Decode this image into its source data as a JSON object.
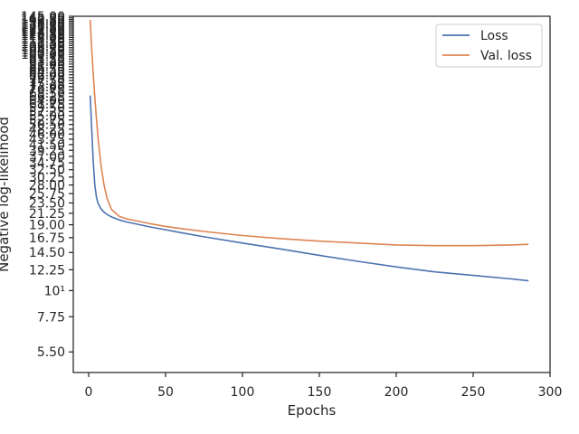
{
  "chart_data": {
    "type": "line",
    "title": "",
    "xlabel": "Epochs",
    "ylabel": "Negative log-likelihood",
    "yscale": "log",
    "xlim": [
      -10,
      300
    ],
    "ylim": [
      4.5,
      145
    ],
    "x_ticks": [
      "0",
      "50",
      "100",
      "150",
      "200",
      "250",
      "300"
    ],
    "x_tick_values": [
      0,
      50,
      100,
      150,
      200,
      250,
      300
    ],
    "y_ticks": [
      "5.50",
      "7.75",
      "10¹",
      "12.25",
      "14.50",
      "16.75",
      "19.00",
      "21.25",
      "23.50",
      "25.75",
      "28.00",
      "30.25",
      "32.50",
      "34.75",
      "37.00",
      "39.25",
      "41.50",
      "43.75",
      "46.00",
      "48.25",
      "50.50",
      "52.75",
      "55.00",
      "57.25",
      "59.50",
      "61.75",
      "64.00",
      "66.25",
      "68.50",
      "70.75",
      "73.00",
      "75.25",
      "77.50",
      "79.75",
      "82.00",
      "84.25",
      "86.50",
      "88.75",
      "91.00",
      "93.25",
      "95.50",
      "97.75",
      "100.00",
      "102.25",
      "104.50",
      "106.75",
      "109.00",
      "111.25",
      "113.50",
      "115.75",
      "118.00",
      "120.25",
      "122.50",
      "124.75",
      "127.00",
      "129.25",
      "131.50",
      "133.75",
      "136.00",
      "138.25",
      "140.50",
      "142.75",
      "145.00"
    ],
    "y_tick_values": [
      5.5,
      7.75,
      10,
      12.25,
      14.5,
      16.75,
      19,
      21.25,
      23.5,
      25.75,
      28,
      30.25,
      32.5,
      34.75,
      37,
      39.25,
      41.5,
      43.75,
      46,
      48.25,
      50.5,
      52.75,
      55,
      57.25,
      59.5,
      61.75,
      64,
      66.25,
      68.5,
      70.75,
      73,
      75.25,
      77.5,
      79.75,
      82,
      84.25,
      86.5,
      88.75,
      91,
      93.25,
      95.5,
      97.75,
      100,
      102.25,
      104.5,
      106.75,
      109,
      111.25,
      113.5,
      115.75,
      118,
      120.25,
      122.5,
      124.75,
      127,
      129.25,
      131.5,
      133.75,
      136,
      138.25,
      140.5,
      142.75,
      145
    ],
    "grid": false,
    "legend_position": "top-right",
    "series": [
      {
        "name": "Loss",
        "color": "#4c72b0",
        "x": [
          1,
          2,
          3,
          4,
          5,
          6,
          8,
          10,
          12,
          15,
          20,
          25,
          30,
          40,
          50,
          60,
          75,
          100,
          125,
          150,
          175,
          200,
          225,
          250,
          275,
          286
        ],
        "y": [
          67,
          48,
          35,
          28,
          25,
          23.5,
          22.2,
          21.5,
          21,
          20.5,
          19.9,
          19.5,
          19.2,
          18.6,
          18.1,
          17.6,
          16.9,
          15.9,
          15.0,
          14.1,
          13.3,
          12.6,
          12.0,
          11.6,
          11.2,
          11.0
        ]
      },
      {
        "name": "Val. loss",
        "color": "#dd8452",
        "x": [
          1,
          2,
          3,
          4,
          5,
          6,
          8,
          10,
          12,
          15,
          20,
          25,
          30,
          40,
          50,
          60,
          75,
          100,
          125,
          150,
          175,
          200,
          225,
          250,
          275,
          286
        ],
        "y": [
          140,
          105,
          82,
          66,
          54,
          45,
          34,
          28,
          24.5,
          22,
          20.6,
          20.1,
          19.8,
          19.2,
          18.7,
          18.3,
          17.8,
          17.1,
          16.6,
          16.2,
          15.9,
          15.6,
          15.5,
          15.5,
          15.6,
          15.7
        ]
      }
    ]
  }
}
